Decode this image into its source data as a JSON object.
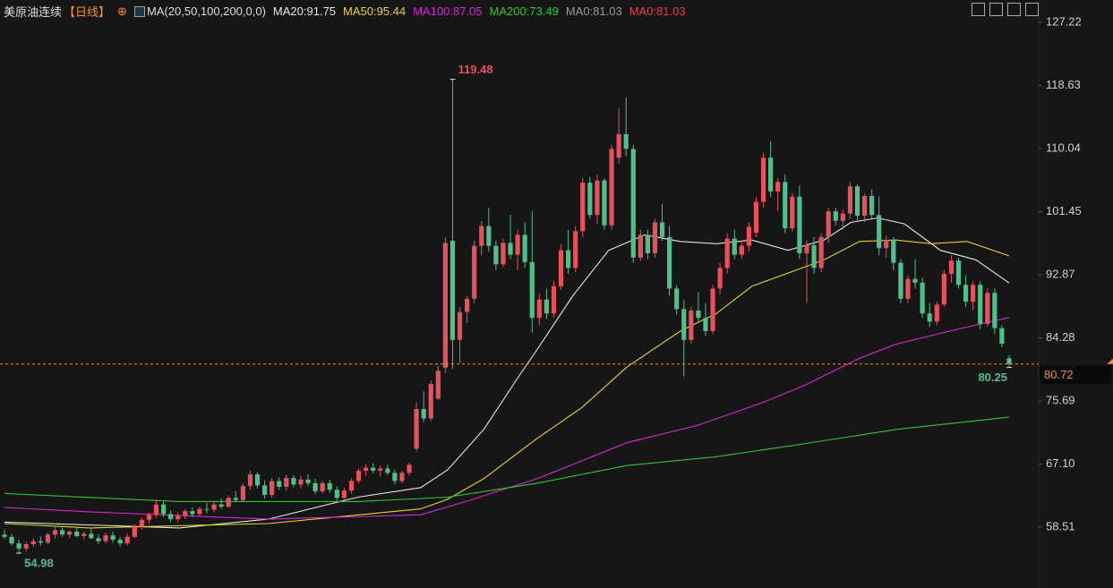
{
  "chart_data": {
    "type": "candlestick",
    "title": "美原油连续",
    "period": "【日线】",
    "indicator": "MA(20,50,100,200,0,0)",
    "up_color": "#e8505b",
    "down_color": "#4fbf8c",
    "ylim": [
      50.23,
      130.27
    ],
    "yticks": [
      127.22,
      118.63,
      110.04,
      101.45,
      92.87,
      84.28,
      75.69,
      {
        "value": 67.1,
        "label": "67.10"
      },
      58.51
    ],
    "last_price": 80.72,
    "last_price_color": "#f0902a",
    "open": [
      57.5,
      57.2,
      56.3,
      55.6,
      56.2,
      56.6,
      56.4,
      57.5,
      58.1,
      57.5,
      57.9,
      57.3,
      57.6,
      57.0,
      56.6,
      57.4,
      56.8,
      56.3,
      57.2,
      58.6,
      59.5,
      60.2,
      61.6,
      60.3,
      59.6,
      60.1,
      60.7,
      60.3,
      61.0,
      60.9,
      61.6,
      61.3,
      62.5,
      62.2,
      64.1,
      65.7,
      64.2,
      62.9,
      64.8,
      64.0,
      65.2,
      64.3,
      65.0,
      64.5,
      63.4,
      64.5,
      63.6,
      62.5,
      63.5,
      64.8,
      66.2,
      66.6,
      66.2,
      66.5,
      65.9,
      64.8,
      65.9,
      69.2,
      74.6,
      73.3,
      76.0,
      80.2,
      97.5,
      84.0,
      87.8,
      89.6,
      96.8,
      99.5,
      96.8,
      94.3,
      97.2,
      95.6,
      98.3,
      94.6,
      87.0,
      89.5,
      87.6,
      91.3,
      96.2,
      93.8,
      98.8,
      105.4,
      101.0,
      105.7,
      99.6,
      108.8,
      112.0,
      110.0,
      95.2,
      98.3,
      95.8,
      100.0,
      98.0,
      91.0,
      88.2,
      84.0,
      88.0,
      87.0,
      85.2,
      91.0,
      93.8,
      97.8,
      95.6,
      96.8,
      98.6,
      102.8,
      108.8,
      104.2,
      105.5,
      99.2,
      103.5,
      95.8,
      96.9,
      93.8,
      98.0,
      101.5,
      100.2,
      101.2,
      104.9,
      100.9,
      103.6,
      101.0,
      96.5,
      97.6,
      94.5,
      89.6,
      92.3,
      91.8,
      87.6,
      86.5,
      88.8,
      93.0,
      94.8,
      91.5,
      89.2,
      91.5,
      86.2,
      90.4,
      85.6,
      81.5
    ],
    "high": [
      58.2,
      57.6,
      56.8,
      56.5,
      57.0,
      57.3,
      57.8,
      58.5,
      58.6,
      58.2,
      58.4,
      57.9,
      58.3,
      57.5,
      57.8,
      57.9,
      57.2,
      57.6,
      58.9,
      59.8,
      60.5,
      62.3,
      62.0,
      60.8,
      60.5,
      61.0,
      61.2,
      61.3,
      61.8,
      61.9,
      62.4,
      62.8,
      63.4,
      64.5,
      66.2,
      66.0,
      64.9,
      65.2,
      65.3,
      65.6,
      65.6,
      65.5,
      65.7,
      65.1,
      64.8,
      65.0,
      64.1,
      63.9,
      65.2,
      66.5,
      67.1,
      67.2,
      66.9,
      67.0,
      66.4,
      66.2,
      67.3,
      75.5,
      77.0,
      78.5,
      80.5,
      98.0,
      119.48,
      88.5,
      90.0,
      97.5,
      100.2,
      102.0,
      97.5,
      97.8,
      101.0,
      99.0,
      100.0,
      101.5,
      90.3,
      91.0,
      92.0,
      97.0,
      99.0,
      99.5,
      106.0,
      106.2,
      106.5,
      106.0,
      110.5,
      115.5,
      117.0,
      110.5,
      99.0,
      99.0,
      100.5,
      102.5,
      99.5,
      91.5,
      89.5,
      88.5,
      90.5,
      89.0,
      91.5,
      94.5,
      98.5,
      99.0,
      97.5,
      100.0,
      103.5,
      109.5,
      111.0,
      106.0,
      106.5,
      104.0,
      105.0,
      97.5,
      98.0,
      98.5,
      102.0,
      102.0,
      101.8,
      105.5,
      105.2,
      104.0,
      104.5,
      103.5,
      98.2,
      98.0,
      95.0,
      92.8,
      95.0,
      92.5,
      89.0,
      89.2,
      93.5,
      95.5,
      95.2,
      92.8,
      92.0,
      92.0,
      91.0,
      91.0,
      86.0,
      81.9
    ],
    "low": [
      56.9,
      56.0,
      54.98,
      55.2,
      55.8,
      56.0,
      56.2,
      57.0,
      57.2,
      57.0,
      57.1,
      56.8,
      56.9,
      56.2,
      56.3,
      56.4,
      55.9,
      56.0,
      57.0,
      58.2,
      59.0,
      59.8,
      59.9,
      59.2,
      59.1,
      59.6,
      59.9,
      60.0,
      60.4,
      60.5,
      61.0,
      61.1,
      61.9,
      62.0,
      63.6,
      63.8,
      62.4,
      62.5,
      63.6,
      63.5,
      63.9,
      63.8,
      64.1,
      63.0,
      63.1,
      63.2,
      62.0,
      62.2,
      63.1,
      64.5,
      65.5,
      65.8,
      65.4,
      65.6,
      64.3,
      64.5,
      65.5,
      68.8,
      72.8,
      72.9,
      75.8,
      79.5,
      80.1,
      80.8,
      86.3,
      89.0,
      95.5,
      96.0,
      93.5,
      93.9,
      95.0,
      93.5,
      93.8,
      85.0,
      86.0,
      86.8,
      87.0,
      90.8,
      93.0,
      93.2,
      98.0,
      100.5,
      99.8,
      99.0,
      99.0,
      108.0,
      109.0,
      94.5,
      94.8,
      95.0,
      95.2,
      97.5,
      90.0,
      87.5,
      79.0,
      83.5,
      86.5,
      84.5,
      84.8,
      90.2,
      93.0,
      95.0,
      95.0,
      96.0,
      98.0,
      102.0,
      103.5,
      101.5,
      98.5,
      98.8,
      95.0,
      89.0,
      93.0,
      93.2,
      97.2,
      99.6,
      99.0,
      100.5,
      100.2,
      100.0,
      100.5,
      95.5,
      95.2,
      93.5,
      89.0,
      89.0,
      91.0,
      87.0,
      85.8,
      86.0,
      88.5,
      91.8,
      91.0,
      88.5,
      88.0,
      85.5,
      85.8,
      84.8,
      83.0,
      80.25
    ],
    "close": [
      57.2,
      56.3,
      55.6,
      56.2,
      56.6,
      56.4,
      57.5,
      58.1,
      57.5,
      57.9,
      57.3,
      57.6,
      57.0,
      56.6,
      57.4,
      56.8,
      56.3,
      57.2,
      58.6,
      59.5,
      60.2,
      61.6,
      60.3,
      59.6,
      60.1,
      60.7,
      60.3,
      61.0,
      60.9,
      61.6,
      61.3,
      62.5,
      62.2,
      64.1,
      65.7,
      64.2,
      62.9,
      64.8,
      64.0,
      65.2,
      64.3,
      65.0,
      64.5,
      63.4,
      64.5,
      63.6,
      62.5,
      63.5,
      64.8,
      66.2,
      66.6,
      66.2,
      66.5,
      65.9,
      64.8,
      65.9,
      67.0,
      74.6,
      73.3,
      78.0,
      79.8,
      97.2,
      84.0,
      87.8,
      89.6,
      96.8,
      99.5,
      96.8,
      94.3,
      97.2,
      95.6,
      98.3,
      94.6,
      87.0,
      89.5,
      87.6,
      91.3,
      96.2,
      93.8,
      98.8,
      105.4,
      101.0,
      105.7,
      99.6,
      110.0,
      112.0,
      110.0,
      95.2,
      98.3,
      95.8,
      100.0,
      98.0,
      91.0,
      88.2,
      84.0,
      88.0,
      87.0,
      85.2,
      91.0,
      93.8,
      97.8,
      95.6,
      96.8,
      99.4,
      102.8,
      108.8,
      104.2,
      105.5,
      99.2,
      103.5,
      95.8,
      96.9,
      93.8,
      98.0,
      101.5,
      100.2,
      101.2,
      104.9,
      100.9,
      103.6,
      101.0,
      96.5,
      97.6,
      94.5,
      89.6,
      92.3,
      91.8,
      87.6,
      86.5,
      88.8,
      93.0,
      94.8,
      91.5,
      89.2,
      91.5,
      86.2,
      90.4,
      85.6,
      83.5,
      80.72
    ],
    "series": [
      {
        "name": "MA20:91.75",
        "color": "#e6e6e6",
        "x": [
          0,
          24.2,
          36.5,
          48.9,
          57.6,
          61.3,
          66.3,
          71.2,
          73.7,
          78.7,
          83.6,
          88.6,
          93.5,
          98.5,
          103.4,
          108.4,
          113.4,
          117.1,
          120.8,
          124.5,
          129.5,
          134.4,
          139
        ],
        "values": [
          59.2,
          58.4,
          59.6,
          62.6,
          63.9,
          66.3,
          71.8,
          79.1,
          82.7,
          90.1,
          96.2,
          98.3,
          97.4,
          97.1,
          97.6,
          96.2,
          97.6,
          100.0,
          100.6,
          99.8,
          96.2,
          94.9,
          91.75
        ]
      },
      {
        "name": "MA50:95.44",
        "color": "#e6d42a",
        "x": [
          0,
          11.8,
          36.5,
          57.6,
          61.3,
          66.3,
          73.7,
          79.9,
          86.1,
          93.5,
          98.5,
          103.4,
          108.4,
          113.4,
          118.3,
          123.3,
          128.2,
          133.2,
          139
        ],
        "values": [
          59.0,
          58.4,
          59.0,
          61.0,
          62.3,
          65.1,
          70.6,
          74.8,
          80.3,
          85.2,
          87.6,
          91.3,
          93.1,
          94.9,
          97.4,
          97.6,
          97.1,
          97.4,
          95.44
        ]
      },
      {
        "name": "MA100:87.05",
        "color": "#d42ad4",
        "x": [
          0,
          11.8,
          36.5,
          57.6,
          63.8,
          73.7,
          86.1,
          96.0,
          104.7,
          110.9,
          118.3,
          123.3,
          130.7,
          139
        ],
        "values": [
          61.2,
          60.6,
          59.6,
          60.2,
          62.0,
          65.1,
          70.0,
          72.4,
          75.4,
          77.9,
          81.5,
          83.4,
          85.2,
          87.05
        ]
      },
      {
        "name": "MA200:73.49",
        "color": "#2fc62f",
        "x": [
          0,
          24.2,
          48.9,
          61.3,
          73.7,
          86.1,
          98.5,
          110.9,
          123.3,
          139
        ],
        "values": [
          63.1,
          62.0,
          62.0,
          62.6,
          64.5,
          66.9,
          68.1,
          69.9,
          71.8,
          73.49
        ]
      }
    ],
    "legend_extra": [
      {
        "text": "MA0:81.03",
        "color": "#9a9a9a"
      },
      {
        "text": "MA0:81.03",
        "color": "#e8404a"
      }
    ],
    "annotations": [
      {
        "x": 62,
        "value": 119.48,
        "color": "#e8505b"
      },
      {
        "x": 2,
        "value": 54.98,
        "color": "#4fbf8c"
      },
      {
        "x": 139,
        "value": 80.25,
        "color": "#4fbf8c"
      }
    ]
  }
}
